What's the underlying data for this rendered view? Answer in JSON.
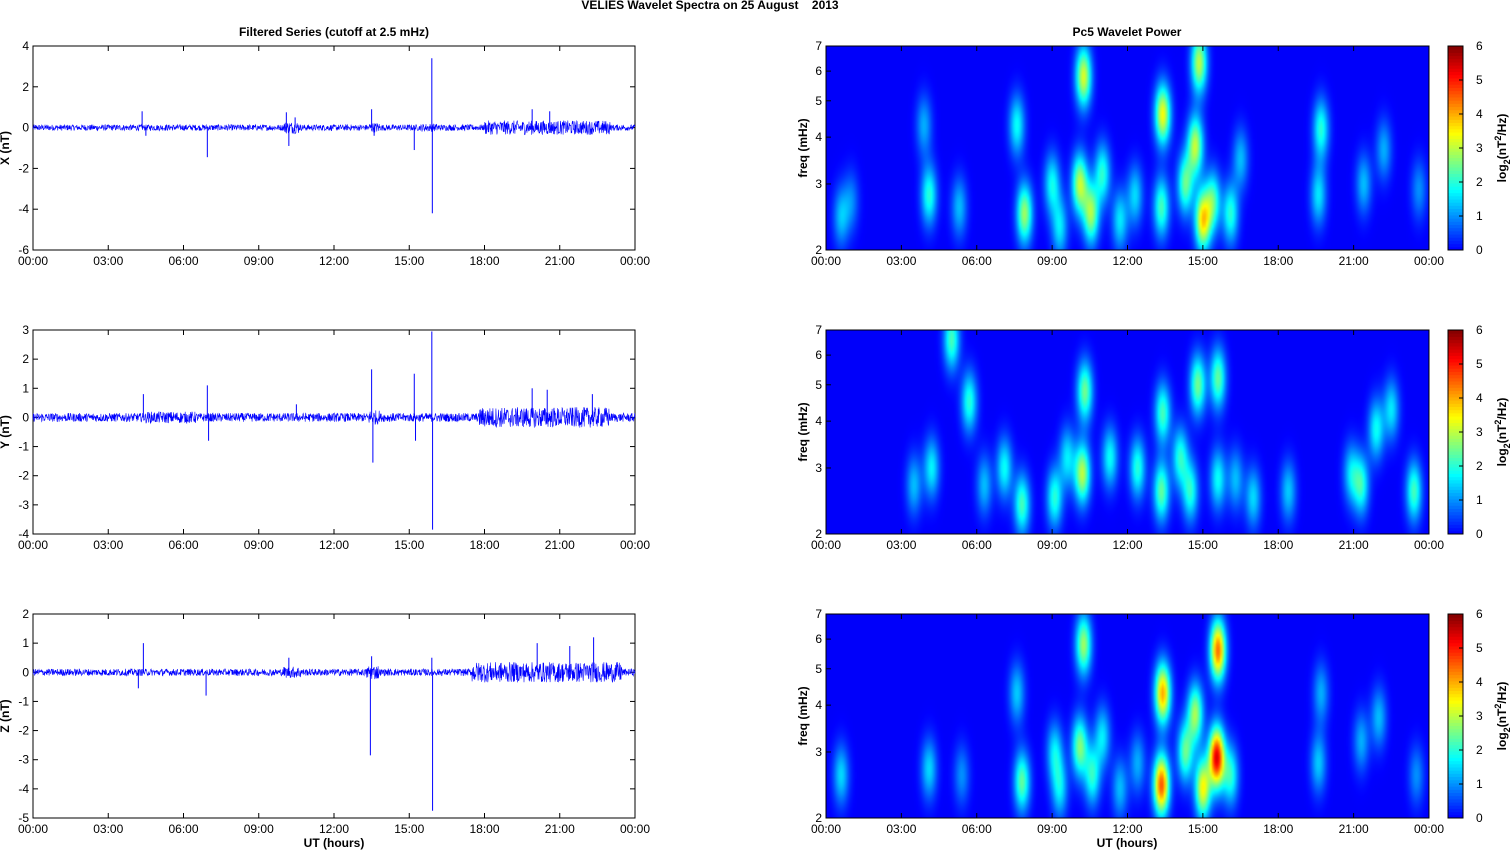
{
  "figure": {
    "title": "VELIES Wavelet Spectra on 25 August    2013",
    "left_title": "Filtered Series (cutoff at 2.5 mHz)",
    "right_title": "Pc5 Wavelet Power",
    "xlabel": "UT (hours)",
    "freq_label": "freq (mHz)",
    "colorbar_label": "log2(nT2/Hz)",
    "line_color": "#0000ff",
    "colormap": "jet"
  },
  "chart_data": [
    {
      "type": "line",
      "panel": "X",
      "ylabel": "X (nT)",
      "x_ticks": [
        "00:00",
        "03:00",
        "06:00",
        "09:00",
        "12:00",
        "15:00",
        "18:00",
        "21:00",
        "00:00"
      ],
      "xlim_hours": [
        0,
        24
      ],
      "ylim": [
        -6,
        4
      ],
      "y_ticks": [
        -6,
        -4,
        -2,
        0,
        2,
        4
      ],
      "grid": false,
      "baseline_amplitude": 0.15,
      "spikes": [
        [
          4.35,
          0.8
        ],
        [
          4.5,
          -0.4
        ],
        [
          6.95,
          -1.45
        ],
        [
          10.1,
          0.75
        ],
        [
          10.2,
          -0.9
        ],
        [
          10.45,
          0.5
        ],
        [
          13.5,
          0.9
        ],
        [
          13.6,
          -0.4
        ],
        [
          15.2,
          -1.1
        ],
        [
          15.9,
          3.4
        ],
        [
          15.92,
          -4.2
        ],
        [
          19.9,
          0.9
        ],
        [
          20.6,
          0.8
        ]
      ],
      "noise_segments": [
        [
          18.0,
          23.0,
          0.35
        ],
        [
          10.0,
          10.6,
          0.3
        ],
        [
          13.4,
          13.8,
          0.25
        ],
        [
          15.5,
          16.2,
          0.2
        ]
      ]
    },
    {
      "type": "line",
      "panel": "Y",
      "ylabel": "Y (nT)",
      "x_ticks": [
        "00:00",
        "03:00",
        "06:00",
        "09:00",
        "12:00",
        "15:00",
        "18:00",
        "21:00",
        "00:00"
      ],
      "xlim_hours": [
        0,
        24
      ],
      "ylim": [
        -4,
        3
      ],
      "y_ticks": [
        -4,
        -3,
        -2,
        -1,
        0,
        1,
        2,
        3
      ],
      "grid": false,
      "baseline_amplitude": 0.15,
      "spikes": [
        [
          4.4,
          0.8
        ],
        [
          6.95,
          1.1
        ],
        [
          7.0,
          -0.8
        ],
        [
          10.5,
          0.45
        ],
        [
          13.5,
          1.65
        ],
        [
          13.55,
          -1.55
        ],
        [
          15.2,
          1.5
        ],
        [
          15.25,
          -0.8
        ],
        [
          15.9,
          2.95
        ],
        [
          15.93,
          -3.85
        ],
        [
          19.9,
          1.0
        ],
        [
          20.5,
          0.95
        ],
        [
          22.3,
          0.8
        ]
      ],
      "noise_segments": [
        [
          17.8,
          23.0,
          0.35
        ],
        [
          4.5,
          6.5,
          0.2
        ],
        [
          13.4,
          13.8,
          0.25
        ]
      ]
    },
    {
      "type": "line",
      "panel": "Z",
      "ylabel": "Z (nT)",
      "x_ticks": [
        "00:00",
        "03:00",
        "06:00",
        "09:00",
        "12:00",
        "15:00",
        "18:00",
        "21:00",
        "00:00"
      ],
      "xlim_hours": [
        0,
        24
      ],
      "ylim": [
        -5,
        2
      ],
      "y_ticks": [
        -5,
        -4,
        -3,
        -2,
        -1,
        0,
        1,
        2
      ],
      "grid": false,
      "baseline_amplitude": 0.12,
      "spikes": [
        [
          4.4,
          1.0
        ],
        [
          4.2,
          -0.55
        ],
        [
          6.9,
          -0.8
        ],
        [
          10.2,
          0.5
        ],
        [
          13.45,
          -2.85
        ],
        [
          13.5,
          0.55
        ],
        [
          15.9,
          0.5
        ],
        [
          15.93,
          -4.75
        ],
        [
          20.1,
          1.0
        ],
        [
          21.4,
          0.9
        ],
        [
          22.35,
          1.2
        ]
      ],
      "noise_segments": [
        [
          17.5,
          23.5,
          0.35
        ],
        [
          10.0,
          10.7,
          0.2
        ],
        [
          13.3,
          13.8,
          0.25
        ]
      ]
    },
    {
      "type": "heatmap",
      "panel": "X",
      "ylabel": "freq (mHz)",
      "x_ticks": [
        "00:00",
        "03:00",
        "06:00",
        "09:00",
        "12:00",
        "15:00",
        "18:00",
        "21:00",
        "00:00"
      ],
      "y_ticks": [
        2,
        3,
        4,
        5,
        6,
        7
      ],
      "ylim_mHz": [
        2,
        7
      ],
      "y_scale": "log",
      "colorbar": {
        "ticks": [
          0,
          1,
          2,
          3,
          4,
          5,
          6
        ],
        "range": [
          0,
          6
        ],
        "label": "log2(nT2/Hz)"
      },
      "blobs": [
        [
          0.6,
          2.45,
          1.3
        ],
        [
          1.0,
          2.7,
          0.9
        ],
        [
          4.1,
          2.8,
          2.0
        ],
        [
          3.9,
          4.3,
          1.2
        ],
        [
          5.3,
          2.6,
          1.3
        ],
        [
          7.6,
          4.3,
          1.8
        ],
        [
          7.9,
          2.5,
          2.8
        ],
        [
          9.0,
          3.0,
          1.8
        ],
        [
          9.3,
          2.3,
          1.6
        ],
        [
          10.1,
          3.0,
          3.0
        ],
        [
          10.25,
          5.8,
          3.2
        ],
        [
          10.55,
          2.5,
          2.8
        ],
        [
          11.0,
          3.2,
          2.0
        ],
        [
          11.7,
          2.4,
          1.6
        ],
        [
          12.3,
          2.8,
          1.5
        ],
        [
          13.35,
          2.6,
          2.2
        ],
        [
          13.4,
          4.6,
          3.4
        ],
        [
          14.3,
          3.0,
          2.4
        ],
        [
          14.7,
          3.8,
          3.0
        ],
        [
          15.0,
          2.4,
          3.6
        ],
        [
          14.85,
          6.3,
          3.0
        ],
        [
          15.4,
          2.7,
          2.2
        ],
        [
          16.1,
          2.5,
          2.0
        ],
        [
          16.5,
          3.5,
          1.3
        ],
        [
          19.7,
          4.2,
          2.0
        ],
        [
          19.6,
          2.8,
          1.6
        ],
        [
          21.4,
          3.0,
          1.3
        ],
        [
          22.2,
          3.7,
          1.2
        ],
        [
          23.6,
          2.9,
          1.0
        ]
      ]
    },
    {
      "type": "heatmap",
      "panel": "Y",
      "ylabel": "freq (mHz)",
      "x_ticks": [
        "00:00",
        "03:00",
        "06:00",
        "09:00",
        "12:00",
        "15:00",
        "18:00",
        "21:00",
        "00:00"
      ],
      "y_ticks": [
        2,
        3,
        4,
        5,
        6,
        7
      ],
      "ylim_mHz": [
        2,
        7
      ],
      "y_scale": "log",
      "colorbar": {
        "ticks": [
          0,
          1,
          2,
          3,
          4,
          5,
          6
        ],
        "range": [
          0,
          6
        ],
        "label": "log2(nT2/Hz)"
      },
      "blobs": [
        [
          3.5,
          2.7,
          1.3
        ],
        [
          4.2,
          3.0,
          1.7
        ],
        [
          5.0,
          6.6,
          2.2
        ],
        [
          5.7,
          4.5,
          2.0
        ],
        [
          6.3,
          2.7,
          1.3
        ],
        [
          7.1,
          3.0,
          1.8
        ],
        [
          7.8,
          2.4,
          2.2
        ],
        [
          9.1,
          2.5,
          2.0
        ],
        [
          9.6,
          3.2,
          1.6
        ],
        [
          10.2,
          2.9,
          3.0
        ],
        [
          10.3,
          4.8,
          2.5
        ],
        [
          11.3,
          3.2,
          1.8
        ],
        [
          12.4,
          3.0,
          2.0
        ],
        [
          13.35,
          2.6,
          2.4
        ],
        [
          13.4,
          4.2,
          2.2
        ],
        [
          14.1,
          3.2,
          2.0
        ],
        [
          14.5,
          2.6,
          2.0
        ],
        [
          14.8,
          5.0,
          2.5
        ],
        [
          15.6,
          2.8,
          1.8
        ],
        [
          15.6,
          5.2,
          2.4
        ],
        [
          16.3,
          2.8,
          1.3
        ],
        [
          17.0,
          2.5,
          1.5
        ],
        [
          18.4,
          2.6,
          1.4
        ],
        [
          20.9,
          2.9,
          1.5
        ],
        [
          21.3,
          2.7,
          2.0
        ],
        [
          21.9,
          3.8,
          1.8
        ],
        [
          22.5,
          4.3,
          1.6
        ],
        [
          23.4,
          2.6,
          2.2
        ]
      ]
    },
    {
      "type": "heatmap",
      "panel": "Z",
      "ylabel": "freq (mHz)",
      "x_ticks": [
        "00:00",
        "03:00",
        "06:00",
        "09:00",
        "12:00",
        "15:00",
        "18:00",
        "21:00",
        "00:00"
      ],
      "y_ticks": [
        2,
        3,
        4,
        5,
        6,
        7
      ],
      "ylim_mHz": [
        2,
        7
      ],
      "y_scale": "log",
      "colorbar": {
        "ticks": [
          0,
          1,
          2,
          3,
          4,
          5,
          6
        ],
        "range": [
          0,
          6
        ],
        "label": "log2(nT2/Hz)"
      },
      "blobs": [
        [
          0.6,
          2.6,
          1.5
        ],
        [
          4.1,
          2.7,
          1.5
        ],
        [
          5.4,
          2.6,
          1.0
        ],
        [
          7.6,
          4.3,
          1.4
        ],
        [
          7.8,
          2.5,
          2.4
        ],
        [
          9.1,
          3.0,
          1.6
        ],
        [
          9.3,
          2.4,
          1.6
        ],
        [
          10.1,
          3.1,
          2.6
        ],
        [
          10.25,
          5.8,
          2.8
        ],
        [
          10.6,
          2.6,
          2.0
        ],
        [
          11.0,
          3.3,
          1.6
        ],
        [
          11.7,
          2.4,
          1.3
        ],
        [
          12.4,
          2.8,
          1.2
        ],
        [
          13.35,
          2.45,
          4.6
        ],
        [
          13.4,
          4.3,
          4.0
        ],
        [
          14.3,
          3.0,
          2.4
        ],
        [
          14.7,
          3.8,
          2.8
        ],
        [
          15.0,
          2.4,
          3.4
        ],
        [
          15.55,
          2.9,
          5.3
        ],
        [
          15.6,
          5.6,
          4.4
        ],
        [
          16.1,
          2.6,
          2.0
        ],
        [
          19.6,
          2.8,
          1.4
        ],
        [
          19.7,
          4.3,
          1.2
        ],
        [
          21.3,
          3.2,
          1.2
        ],
        [
          22.0,
          3.7,
          1.3
        ],
        [
          23.5,
          2.6,
          1.0
        ]
      ]
    }
  ]
}
